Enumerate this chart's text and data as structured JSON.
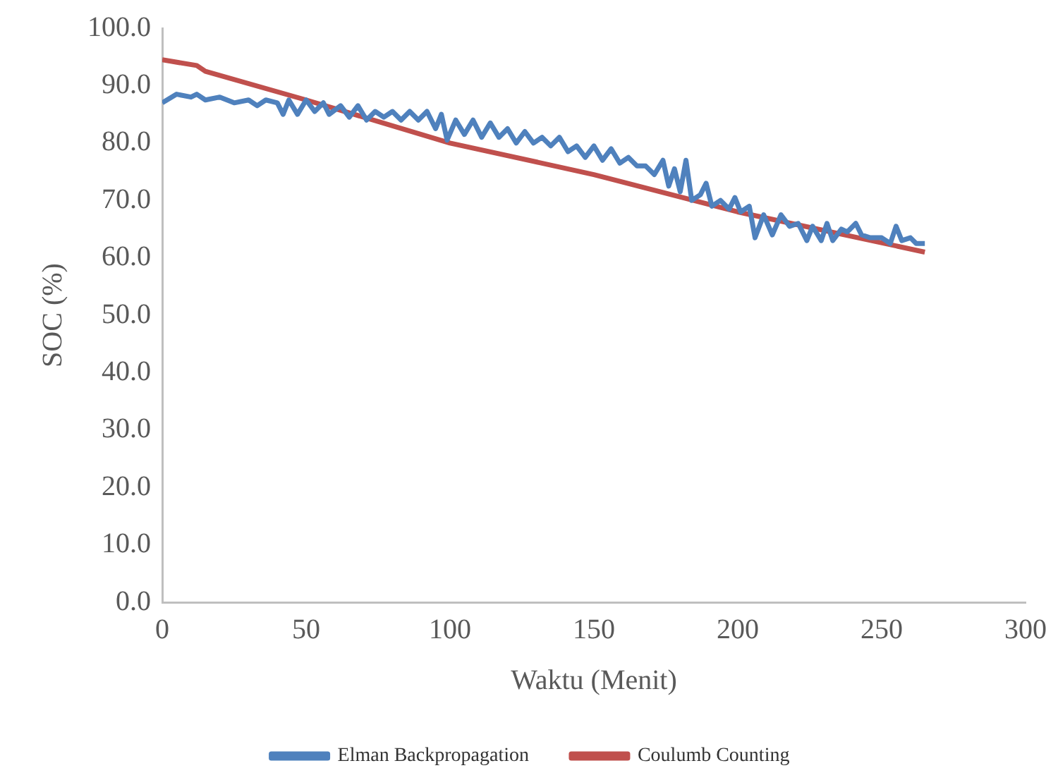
{
  "chart_data": {
    "type": "line",
    "xlabel": "Waktu (Menit)",
    "ylabel": "SOC (%)",
    "xlim": [
      0,
      300
    ],
    "xticks": [
      0,
      50,
      100,
      150,
      200,
      250,
      300
    ],
    "ylim": [
      0,
      100
    ],
    "yticks": [
      {
        "value": 0,
        "label": "0.0"
      },
      {
        "value": 10,
        "label": "10.0"
      },
      {
        "value": 20,
        "label": "20.0"
      },
      {
        "value": 30,
        "label": "30.0"
      },
      {
        "value": 40,
        "label": "40.0"
      },
      {
        "value": 50,
        "label": "50.0"
      },
      {
        "value": 60,
        "label": "60.0"
      },
      {
        "value": 70,
        "label": "70.0"
      },
      {
        "value": 80,
        "label": "80.0"
      },
      {
        "value": 90,
        "label": "90.0"
      },
      {
        "value": 100,
        "label": "100.0"
      }
    ],
    "grid": false,
    "legend": "bottom",
    "marker": "none",
    "line_style": "solid",
    "series": [
      {
        "name": "Elman Backpropagation",
        "color": "#4f81bd",
        "x": [
          0,
          5,
          10,
          12,
          15,
          20,
          25,
          30,
          33,
          36,
          40,
          42,
          44,
          47,
          50,
          53,
          56,
          58,
          62,
          65,
          68,
          71,
          74,
          77,
          80,
          83,
          86,
          89,
          92,
          95,
          97,
          99,
          102,
          105,
          108,
          111,
          114,
          117,
          120,
          123,
          126,
          129,
          132,
          135,
          138,
          141,
          144,
          147,
          150,
          153,
          156,
          159,
          162,
          165,
          168,
          171,
          174,
          176,
          178,
          180,
          182,
          184,
          187,
          189,
          191,
          194,
          197,
          199,
          201,
          204,
          206,
          209,
          212,
          215,
          218,
          221,
          224,
          226,
          229,
          231,
          233,
          236,
          238,
          241,
          243,
          246,
          250,
          253,
          255,
          257,
          260,
          262,
          265
        ],
        "values": [
          87,
          88.5,
          88,
          88.5,
          87.5,
          88,
          87,
          87.5,
          86.5,
          87.5,
          87,
          85,
          87.5,
          85,
          87.5,
          85.5,
          87,
          85,
          86.5,
          84.5,
          86.5,
          84,
          85.5,
          84.5,
          85.5,
          84,
          85.5,
          84,
          85.5,
          82.5,
          85,
          80.5,
          84,
          81.5,
          84,
          81,
          83.5,
          81,
          82.5,
          80,
          82,
          80,
          81,
          79.5,
          81,
          78.5,
          79.5,
          77.5,
          79.5,
          77,
          79,
          76.5,
          77.5,
          76,
          76,
          74.5,
          77,
          72.5,
          75.5,
          71.5,
          77,
          70,
          71,
          73,
          69,
          70,
          68.5,
          70.5,
          68,
          69,
          63.5,
          67.5,
          64,
          67.5,
          65.5,
          66,
          63,
          65.5,
          63,
          66,
          63,
          65,
          64.5,
          66,
          64,
          63.5,
          63.5,
          62.5,
          65.5,
          63,
          63.5,
          62.5,
          62.5
        ]
      },
      {
        "name": "Coulumb Counting",
        "color": "#c0504d",
        "x": [
          0,
          12,
          15,
          50,
          100,
          150,
          200,
          265
        ],
        "values": [
          94.5,
          93.5,
          92.5,
          87.5,
          80,
          74.5,
          68,
          61
        ]
      }
    ]
  }
}
